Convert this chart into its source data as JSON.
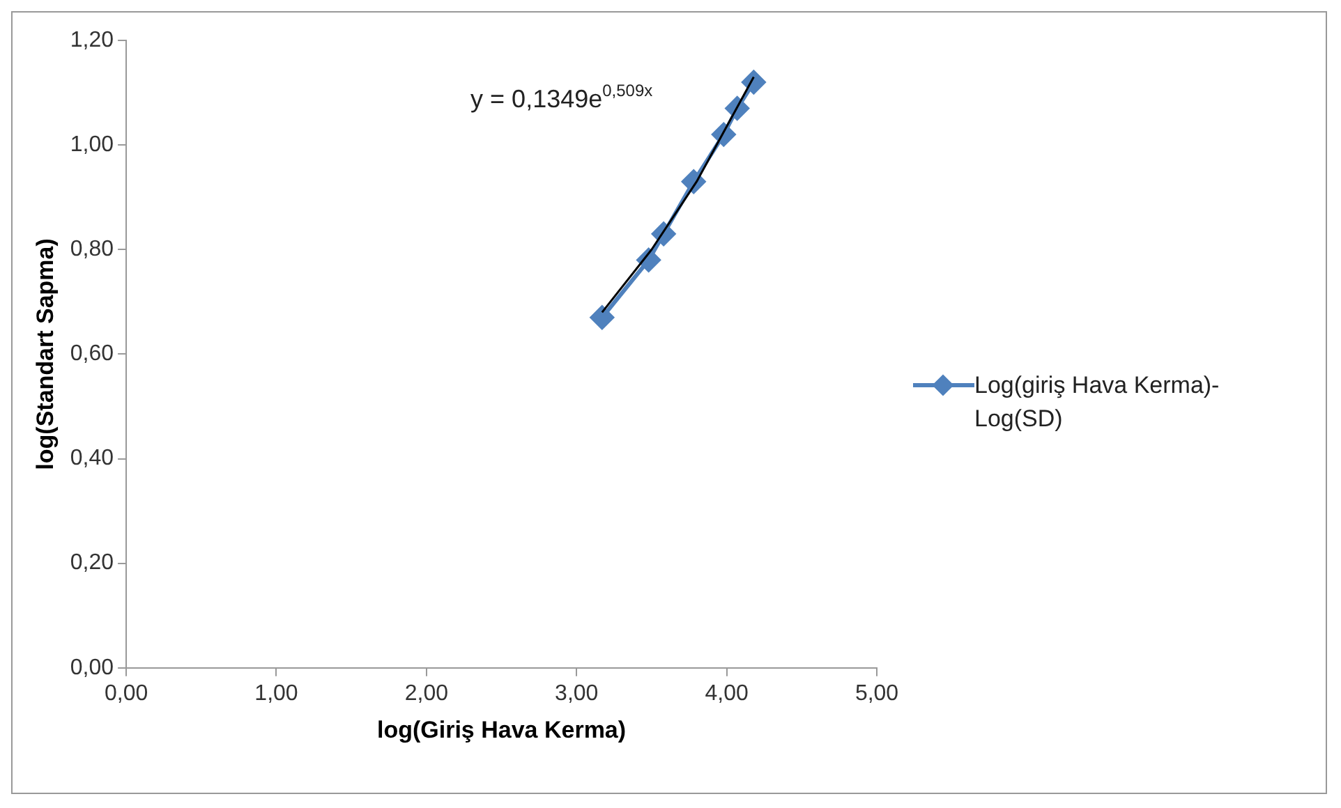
{
  "chart_data": {
    "type": "line",
    "xlabel": "log(Giriş Hava Kerma)",
    "ylabel": "log(Standart Sapma)",
    "xlim": [
      0,
      5
    ],
    "xticks": [
      {
        "value": 0,
        "label": "0,00"
      },
      {
        "value": 1,
        "label": "1,00"
      },
      {
        "value": 2,
        "label": "2,00"
      },
      {
        "value": 3,
        "label": "3,00"
      },
      {
        "value": 4,
        "label": "4,00"
      },
      {
        "value": 5,
        "label": "5,00"
      }
    ],
    "ylim": [
      0,
      1.2
    ],
    "yticks": [
      {
        "value": 0,
        "label": "0,00"
      },
      {
        "value": 0.2,
        "label": "0,20"
      },
      {
        "value": 0.4,
        "label": "0,40"
      },
      {
        "value": 0.6,
        "label": "0,60"
      },
      {
        "value": 0.8,
        "label": "0,80"
      },
      {
        "value": 1.0,
        "label": "1,00"
      },
      {
        "value": 1.2,
        "label": "1,20"
      }
    ],
    "grid": false,
    "legend": "right",
    "marker": "diamond",
    "series": [
      {
        "name": "Log(giriş Hava Kerma)-Log(SD)",
        "color": "#4f81bd",
        "x": [
          3.17,
          3.48,
          3.58,
          3.78,
          3.98,
          4.07,
          4.18
        ],
        "values": [
          0.67,
          0.78,
          0.83,
          0.93,
          1.02,
          1.07,
          1.12
        ]
      },
      {
        "type": "line",
        "color": "#000000",
        "marker": "none",
        "x": [
          3.17,
          3.5,
          3.8,
          4.18
        ],
        "values": [
          0.68,
          0.8,
          0.93,
          1.13
        ]
      }
    ],
    "annotations": [
      "y = 0,1349e$^{0,509x}$"
    ]
  }
}
